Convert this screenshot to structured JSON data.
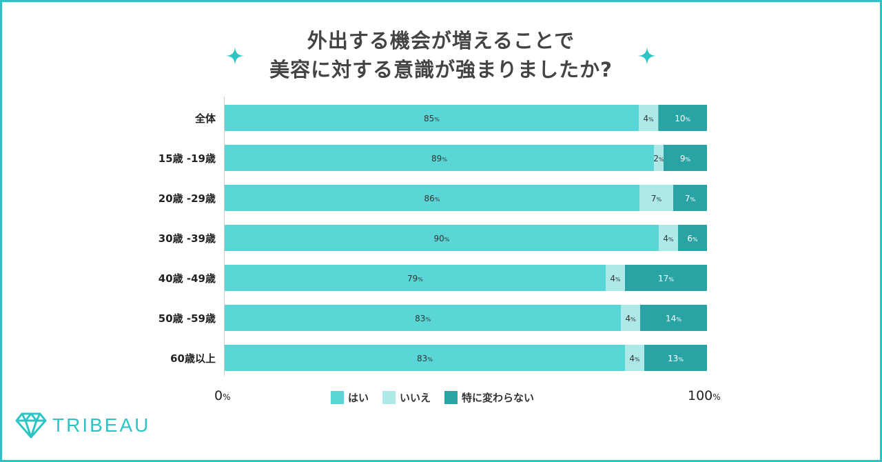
{
  "title_lines": [
    "外出する機会が増えることで",
    "美容に対する意識が強まりましたか?"
  ],
  "colors": {
    "border": "#2cc4c4",
    "yes": "#5ad6d6",
    "no": "#aee9e9",
    "unchanged": "#29a3a3",
    "title": "#444444",
    "accent": "#2cc4c4"
  },
  "legend": {
    "yes": "はい",
    "no": "いいえ",
    "unchanged": "特に変わらない"
  },
  "axis": {
    "min_num": "0",
    "max_num": "100",
    "pct": "%"
  },
  "logo": {
    "text": "TRIBEAU",
    "icon": "diamond-icon"
  },
  "chart_data": {
    "type": "bar",
    "orientation": "horizontal",
    "stacked": true,
    "percent_stacked": true,
    "categories": [
      "全体",
      "15歳 -19歳",
      "20歳 -29歳",
      "30歳 -39歳",
      "40歳 -49歳",
      "50歳 -59歳",
      "60歳以上"
    ],
    "series": [
      {
        "name": "はい",
        "color": "#5ad6d6",
        "values": [
          85,
          89,
          86,
          90,
          79,
          83,
          83
        ]
      },
      {
        "name": "いいえ",
        "color": "#aee9e9",
        "values": [
          4,
          2,
          7,
          4,
          4,
          4,
          4
        ]
      },
      {
        "name": "特に変わらない",
        "color": "#29a3a3",
        "values": [
          10,
          9,
          7,
          6,
          17,
          14,
          13
        ]
      }
    ],
    "xlim": [
      0,
      100
    ],
    "legend_position": "bottom",
    "grid": false
  }
}
